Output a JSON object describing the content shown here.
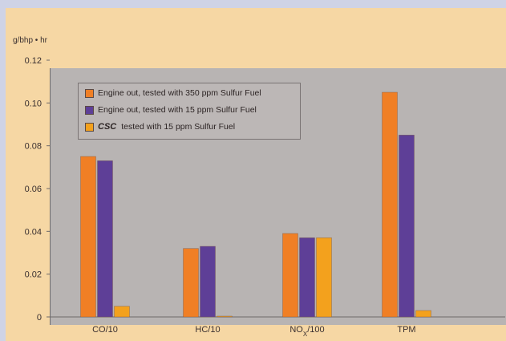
{
  "chart_data": {
    "type": "bar",
    "ylabel": "g/bhp • hr",
    "ylim": [
      0,
      0.12
    ],
    "yticks": [
      0,
      0.02,
      0.04,
      0.06,
      0.08,
      0.1,
      0.12
    ],
    "ytick_labels": [
      "0",
      "0.02",
      "0.04",
      "0.06",
      "0.08",
      "0.10",
      "0.12"
    ],
    "categories": [
      "CO/10",
      "HC/10",
      "NOx/100",
      "TPM"
    ],
    "category_labels": [
      {
        "main": "CO/10",
        "sub": "",
        "rest": ""
      },
      {
        "main": "HC/10",
        "sub": "",
        "rest": ""
      },
      {
        "main": "NO",
        "sub": "X",
        "rest": "/100"
      },
      {
        "main": "TPM",
        "sub": "",
        "rest": ""
      }
    ],
    "series": [
      {
        "name": "Engine out, tested with 350 ppm Sulfur Fuel",
        "color": "#f07f25",
        "values": [
          0.075,
          0.032,
          0.039,
          0.105
        ]
      },
      {
        "name": "Engine out, tested with 15 ppm Sulfur Fuel",
        "color": "#5e3f97",
        "values": [
          0.073,
          0.033,
          0.037,
          0.085
        ]
      },
      {
        "name": "tested with 15 ppm Sulfur Fuel",
        "name_prefix": "CSC",
        "color": "#f3a11d",
        "values": [
          0.005,
          0.0,
          0.037,
          0.003
        ]
      }
    ],
    "legend_position": "top-left",
    "grid": false
  }
}
